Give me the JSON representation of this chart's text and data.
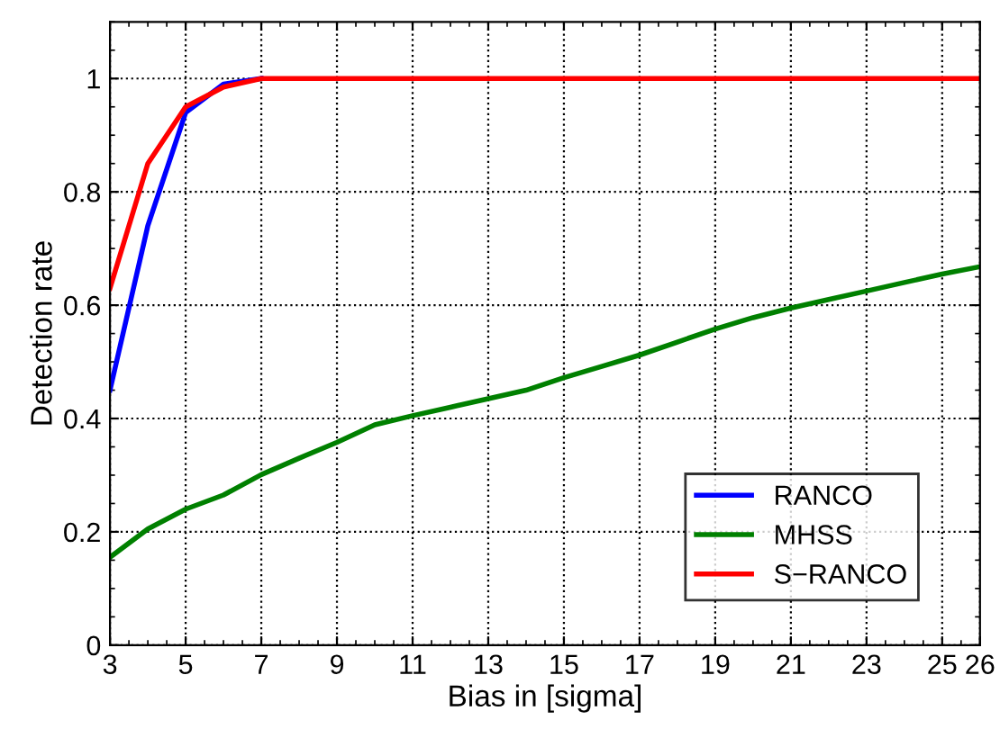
{
  "chart_data": {
    "type": "line",
    "xlabel": "Bias in [sigma]",
    "ylabel": "Detection rate",
    "x": [
      3,
      4,
      5,
      6,
      7,
      8,
      9,
      10,
      11,
      12,
      13,
      14,
      15,
      16,
      17,
      18,
      19,
      20,
      21,
      22,
      23,
      24,
      25,
      26
    ],
    "series": [
      {
        "name": "RANCO",
        "color": "#0000ff",
        "values": [
          0.45,
          0.74,
          0.94,
          0.99,
          1,
          null,
          null,
          null,
          null,
          null,
          null,
          null,
          null,
          null,
          null,
          null,
          null,
          null,
          null,
          null,
          null,
          null,
          null,
          null
        ]
      },
      {
        "name": "MHSS",
        "color": "#008000",
        "values": [
          0.155,
          0.205,
          0.24,
          0.265,
          0.301,
          0.33,
          0.358,
          0.389,
          0.405,
          0.42,
          0.435,
          0.45,
          0.472,
          0.492,
          0.512,
          0.535,
          0.558,
          0.578,
          0.595,
          0.61,
          0.625,
          0.64,
          0.655,
          0.668
        ]
      },
      {
        "name": "S−RANCO",
        "color": "#ff0000",
        "values": [
          0.63,
          0.85,
          0.95,
          0.985,
          1,
          1,
          1,
          1,
          1,
          1,
          1,
          1,
          1,
          1,
          1,
          1,
          1,
          1,
          1,
          1,
          1,
          1,
          1,
          1
        ]
      }
    ],
    "xlim": [
      3,
      26
    ],
    "xticks": [
      3,
      5,
      7,
      9,
      11,
      13,
      15,
      17,
      19,
      21,
      23,
      25,
      26
    ],
    "ylim": [
      0,
      1.1
    ],
    "yticks": [
      0,
      0.2,
      0.4,
      0.6,
      0.8,
      1
    ],
    "grid": true,
    "legend": "bottom right",
    "line_style": "solid",
    "marker": "none"
  }
}
